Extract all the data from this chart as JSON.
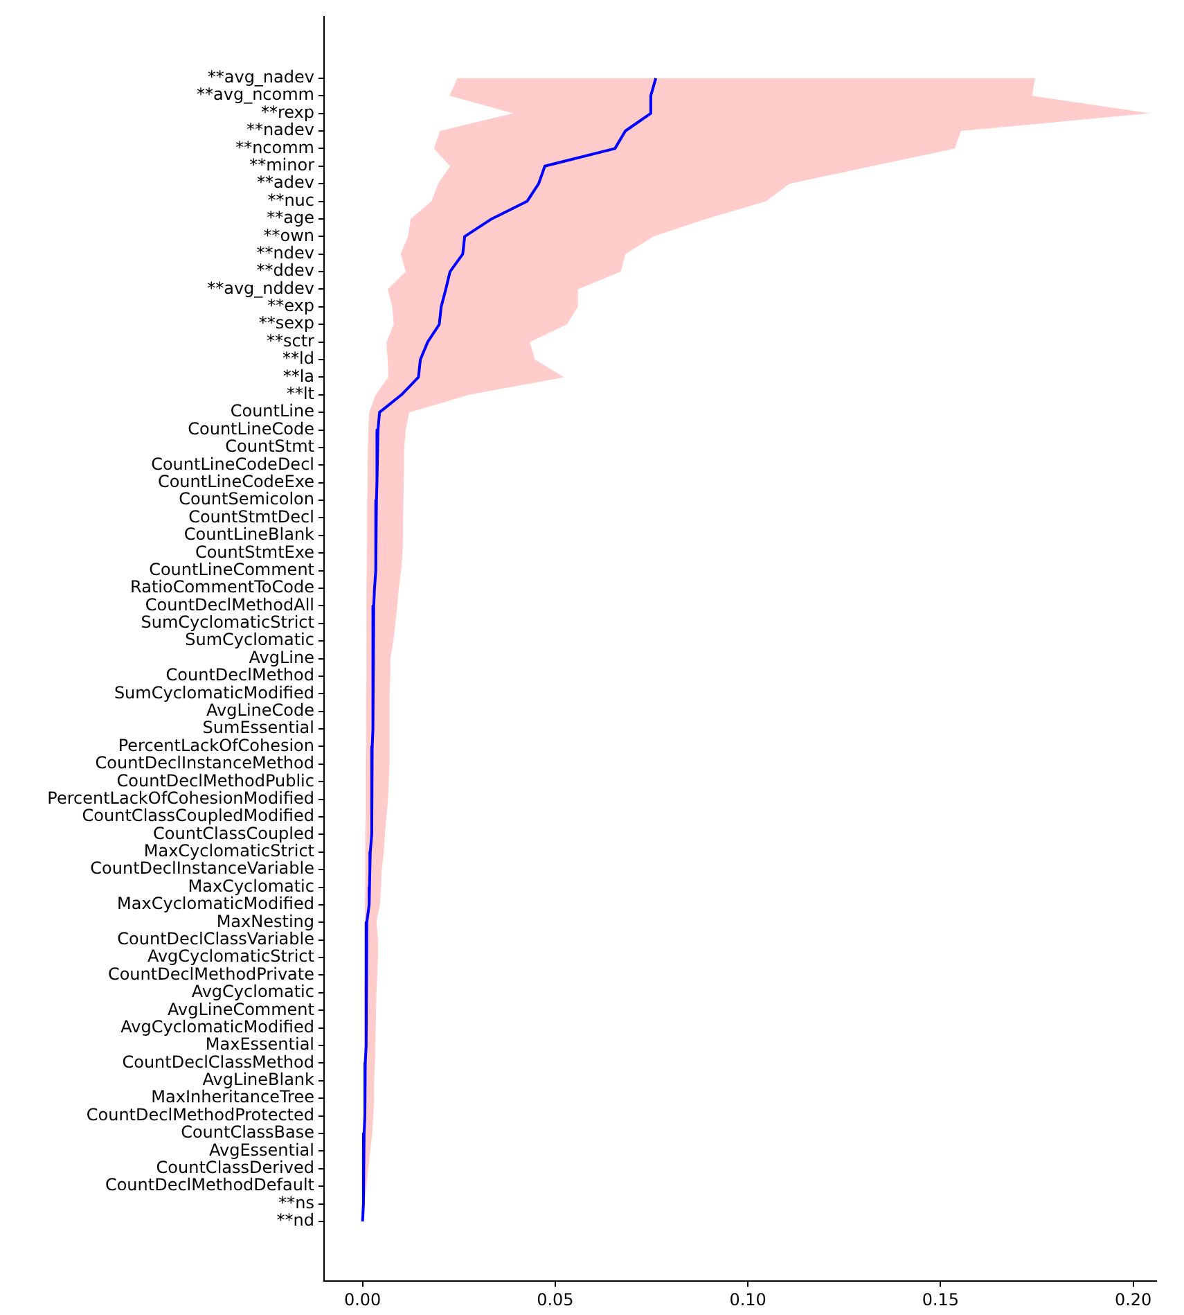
{
  "chart_data": {
    "type": "line",
    "orientation": "horizontal",
    "categories": [
      "**avg_nadev",
      "**avg_ncomm",
      "**rexp",
      "**nadev",
      "**ncomm",
      "**minor",
      "**adev",
      "**nuc",
      "**age",
      "**own",
      "**ndev",
      "**ddev",
      "**avg_nddev",
      "**exp",
      "**sexp",
      "**sctr",
      "**ld",
      "**la",
      "**lt",
      "CountLine",
      "CountLineCode",
      "CountStmt",
      "CountLineCodeDecl",
      "CountLineCodeExe",
      "CountSemicolon",
      "CountStmtDecl",
      "CountLineBlank",
      "CountStmtExe",
      "CountLineComment",
      "RatioCommentToCode",
      "CountDeclMethodAll",
      "SumCyclomaticStrict",
      "SumCyclomatic",
      "AvgLine",
      "CountDeclMethod",
      "SumCyclomaticModified",
      "AvgLineCode",
      "SumEssential",
      "PercentLackOfCohesion",
      "CountDeclInstanceMethod",
      "CountDeclMethodPublic",
      "PercentLackOfCohesionModified",
      "CountClassCoupledModified",
      "CountClassCoupled",
      "MaxCyclomaticStrict",
      "CountDeclInstanceVariable",
      "MaxCyclomatic",
      "MaxCyclomaticModified",
      "MaxNesting",
      "CountDeclClassVariable",
      "AvgCyclomaticStrict",
      "CountDeclMethodPrivate",
      "AvgCyclomatic",
      "AvgLineComment",
      "AvgCyclomaticModified",
      "MaxEssential",
      "CountDeclClassMethod",
      "AvgLineBlank",
      "MaxInheritanceTree",
      "CountDeclMethodProtected",
      "CountClassBase",
      "AvgEssential",
      "CountClassDerived",
      "CountDeclMethodDefault",
      "**ns",
      "**nd"
    ],
    "series": [
      {
        "color": "#0000ff",
        "values": [
          0.0761,
          0.0748,
          0.0748,
          0.0682,
          0.0655,
          0.0473,
          0.0457,
          0.0427,
          0.0335,
          0.0265,
          0.026,
          0.0227,
          0.0216,
          0.0204,
          0.0199,
          0.0169,
          0.015,
          0.0145,
          0.0101,
          0.0044,
          0.004,
          0.0038,
          0.0037,
          0.0037,
          0.0036,
          0.0035,
          0.0035,
          0.0034,
          0.0033,
          0.0031,
          0.0029,
          0.0028,
          0.0028,
          0.0027,
          0.0027,
          0.0026,
          0.0026,
          0.0026,
          0.0025,
          0.0025,
          0.0024,
          0.0024,
          0.0023,
          0.0023,
          0.002,
          0.0019,
          0.0018,
          0.0017,
          0.0011,
          0.0011,
          0.001,
          0.001,
          0.0009,
          0.0009,
          0.0008,
          0.0008,
          0.0007,
          0.0007,
          0.0006,
          0.0005,
          0.0004,
          0.0003,
          0.0003,
          0.0002,
          0.0001,
          0
        ],
        "lower": [
          0.0246,
          0.0226,
          0.0391,
          0.0201,
          0.0185,
          0.0227,
          0.0196,
          0.0179,
          0.0125,
          0.0118,
          0.0099,
          0.0112,
          0.0065,
          0.0077,
          0.0081,
          0.0062,
          0.0065,
          0.0067,
          0.0034,
          0.0017,
          0.0015,
          0.0014,
          0.0013,
          0.0013,
          0.0012,
          0.0012,
          0.0012,
          0.0011,
          0.0011,
          0.001,
          0.001,
          0.001,
          0.001,
          0.001,
          0.001,
          0.0009,
          0.0009,
          0.0009,
          0.0009,
          0.0008,
          0.0008,
          0.0008,
          0.0008,
          0.0007,
          0.0007,
          0.0007,
          0.0007,
          0.0006,
          0.0006,
          0.0005,
          0.0005,
          0.0005,
          0.0004,
          0.0004,
          0.0004,
          0.0004,
          0.0003,
          0.0003,
          0.0003,
          0.0002,
          0.0002,
          0.0002,
          0.0001,
          0.0001,
          0,
          0
        ],
        "upper": [
          0.1745,
          0.1738,
          0.2043,
          0.1553,
          0.1537,
          0.1322,
          0.1108,
          0.1047,
          0.0892,
          0.0755,
          0.0682,
          0.067,
          0.0559,
          0.0559,
          0.053,
          0.0434,
          0.0447,
          0.0523,
          0.0277,
          0.0121,
          0.0112,
          0.0108,
          0.0108,
          0.0107,
          0.0106,
          0.0105,
          0.0105,
          0.0104,
          0.01,
          0.0094,
          0.009,
          0.0085,
          0.008,
          0.0072,
          0.0072,
          0.007,
          0.007,
          0.007,
          0.007,
          0.007,
          0.0068,
          0.0066,
          0.0062,
          0.0058,
          0.0055,
          0.005,
          0.0048,
          0.0045,
          0.0036,
          0.004,
          0.004,
          0.0038,
          0.0036,
          0.0035,
          0.0034,
          0.0033,
          0.0032,
          0.003,
          0.003,
          0.0028,
          0.0025,
          0.002,
          0.0015,
          0.001,
          0.0005,
          0.0002
        ]
      }
    ],
    "xlim": [
      -0.01,
      0.206
    ],
    "xticks": [
      {
        "value": 0,
        "label": "0.00"
      },
      {
        "value": 0.05,
        "label": "0.05"
      },
      {
        "value": 0.1,
        "label": "0.10"
      },
      {
        "value": 0.15,
        "label": "0.15"
      },
      {
        "value": 0.2,
        "label": "0.20"
      }
    ],
    "grid": false,
    "legend": false,
    "marker": "none",
    "line_style": "solid"
  }
}
